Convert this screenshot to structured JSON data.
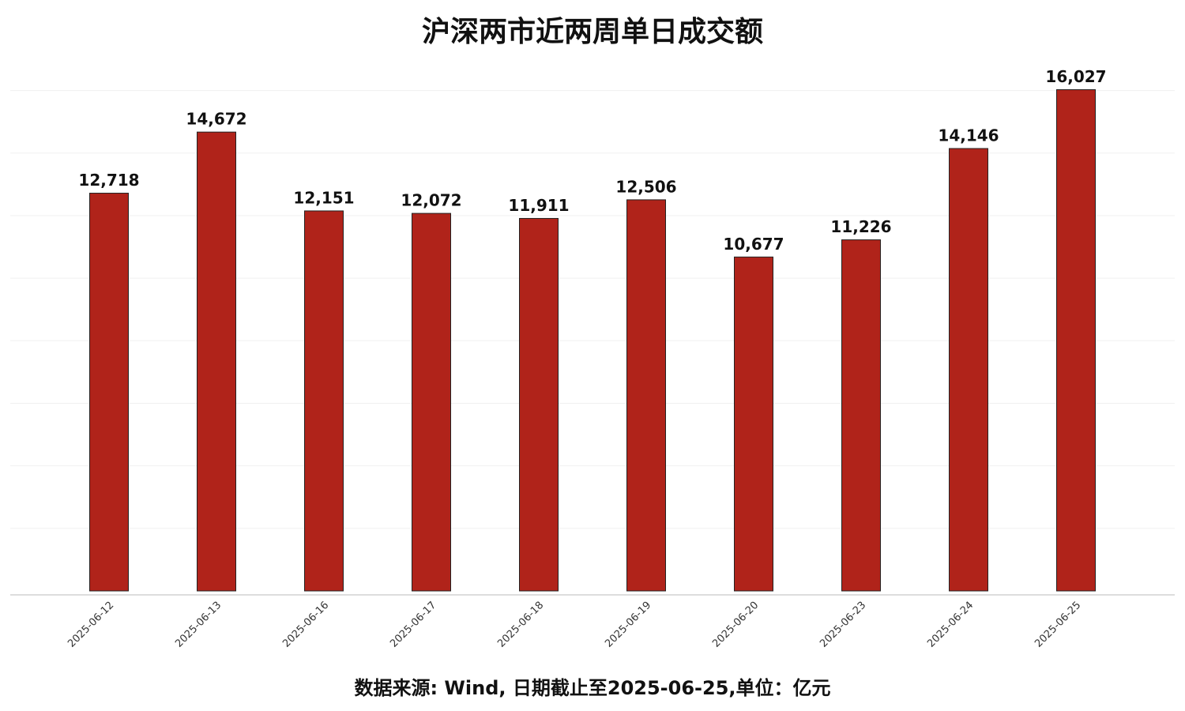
{
  "chart_data": {
    "type": "bar",
    "title": "沪深两市近两周单日成交额",
    "footer": "数据来源: Wind, 日期截止至2025-06-25,单位：亿元",
    "categories": [
      "2025-06-12",
      "2025-06-13",
      "2025-06-16",
      "2025-06-17",
      "2025-06-18",
      "2025-06-19",
      "2025-06-20",
      "2025-06-23",
      "2025-06-24",
      "2025-06-25"
    ],
    "values": [
      12718,
      14672,
      12151,
      12072,
      11911,
      12506,
      10677,
      11226,
      14146,
      16027
    ],
    "value_labels": [
      "12,718",
      "14,672",
      "12,151",
      "12,072",
      "11,911",
      "12,506",
      "10,677",
      "11,226",
      "14,146",
      "16,027"
    ],
    "color": "#b0231a",
    "ylim": [
      0,
      17000
    ],
    "yticks": [
      2000,
      4000,
      6000,
      8000,
      10000,
      12000,
      14000,
      16000
    ],
    "grid": true
  }
}
